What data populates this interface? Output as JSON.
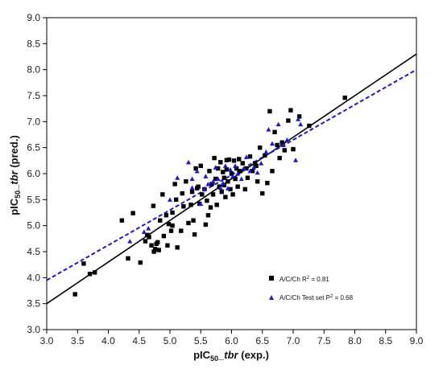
{
  "chart_data": {
    "type": "scatter",
    "xlabel": {
      "main": "pIC",
      "sub": "50",
      "sep": "_",
      "italic": "tbr",
      "rest": " (exp.)"
    },
    "ylabel": {
      "main": "pIC",
      "sub": "50",
      "sep": "_",
      "italic": "tbr",
      "rest": " (pred.)"
    },
    "xlim": [
      3.0,
      9.0
    ],
    "ylim": [
      3.0,
      9.0
    ],
    "xticks": [
      "3.0",
      "3.5",
      "4.0",
      "4.5",
      "5.0",
      "5.5",
      "6.0",
      "6.5",
      "7.0",
      "7.5",
      "8.0",
      "8.5",
      "9.0"
    ],
    "yticks": [
      "3.0",
      "3.5",
      "4.0",
      "4.5",
      "5.0",
      "5.5",
      "6.0",
      "6.5",
      "7.0",
      "7.5",
      "8.0",
      "8.5",
      "9.0"
    ],
    "grid": false,
    "legend_position": "bottom-right",
    "series": [
      {
        "name": "A/C/Ch R",
        "name_sup": "2",
        "name_tail": " = 0.81",
        "marker": "square",
        "color": "#000000",
        "points": [
          [
            3.46,
            3.68
          ],
          [
            3.6,
            4.27
          ],
          [
            3.7,
            4.07
          ],
          [
            3.78,
            4.1
          ],
          [
            4.22,
            5.1
          ],
          [
            4.32,
            4.37
          ],
          [
            4.4,
            5.24
          ],
          [
            4.52,
            4.29
          ],
          [
            4.6,
            4.7
          ],
          [
            4.63,
            4.82
          ],
          [
            4.66,
            4.78
          ],
          [
            4.7,
            4.62
          ],
          [
            4.73,
            5.38
          ],
          [
            4.74,
            4.5
          ],
          [
            4.76,
            4.55
          ],
          [
            4.78,
            4.65
          ],
          [
            4.8,
            4.68
          ],
          [
            4.82,
            4.53
          ],
          [
            4.88,
            5.6
          ],
          [
            4.9,
            4.8
          ],
          [
            4.94,
            5.2
          ],
          [
            4.96,
            4.62
          ],
          [
            4.98,
            5.03
          ],
          [
            5.02,
            4.9
          ],
          [
            5.04,
            5.25
          ],
          [
            5.08,
            5.8
          ],
          [
            5.1,
            5.5
          ],
          [
            5.12,
            4.58
          ],
          [
            5.18,
            4.9
          ],
          [
            5.22,
            5.37
          ],
          [
            5.26,
            5.85
          ],
          [
            5.3,
            5.05
          ],
          [
            5.34,
            5.4
          ],
          [
            5.36,
            5.65
          ],
          [
            5.38,
            5.1
          ],
          [
            5.4,
            4.83
          ],
          [
            5.42,
            6.1
          ],
          [
            5.44,
            5.72
          ],
          [
            5.48,
            5.42
          ],
          [
            5.52,
            5.6
          ],
          [
            5.56,
            5.7
          ],
          [
            5.58,
            5.02
          ],
          [
            5.6,
            5.48
          ],
          [
            5.62,
            5.2
          ],
          [
            5.64,
            6.05
          ],
          [
            5.66,
            5.35
          ],
          [
            5.68,
            5.8
          ],
          [
            5.7,
            5.6
          ],
          [
            5.72,
            6.3
          ],
          [
            5.74,
            5.9
          ],
          [
            5.76,
            5.4
          ],
          [
            5.78,
            6.1
          ],
          [
            5.8,
            5.75
          ],
          [
            5.82,
            6.22
          ],
          [
            5.84,
            5.65
          ],
          [
            5.86,
            6.03
          ],
          [
            5.88,
            5.78
          ],
          [
            5.9,
            5.55
          ],
          [
            5.92,
            6.08
          ],
          [
            5.94,
            5.85
          ],
          [
            5.96,
            6.27
          ],
          [
            5.98,
            5.7
          ],
          [
            6.0,
            6.0
          ],
          [
            6.02,
            5.6
          ],
          [
            6.04,
            6.25
          ],
          [
            6.06,
            5.9
          ],
          [
            6.08,
            6.1
          ],
          [
            6.1,
            5.75
          ],
          [
            6.14,
            6.05
          ],
          [
            6.18,
            6.2
          ],
          [
            6.22,
            5.7
          ],
          [
            6.26,
            5.92
          ],
          [
            6.3,
            6.33
          ],
          [
            6.34,
            6.05
          ],
          [
            6.38,
            6.2
          ],
          [
            6.42,
            5.85
          ],
          [
            6.46,
            6.5
          ],
          [
            6.5,
            5.62
          ],
          [
            6.54,
            6.35
          ],
          [
            6.58,
            5.82
          ],
          [
            6.62,
            7.2
          ],
          [
            6.66,
            6.05
          ],
          [
            6.7,
            6.8
          ],
          [
            6.74,
            6.55
          ],
          [
            6.78,
            6.3
          ],
          [
            6.82,
            6.6
          ],
          [
            6.86,
            6.45
          ],
          [
            6.92,
            7.02
          ],
          [
            6.96,
            7.22
          ],
          [
            7.0,
            6.47
          ],
          [
            7.1,
            7.1
          ],
          [
            7.26,
            6.92
          ],
          [
            7.84,
            7.46
          ],
          [
            6.4,
            6.15
          ],
          [
            5.5,
            6.15
          ],
          [
            5.2,
            5.62
          ],
          [
            5.46,
            5.75
          ],
          [
            6.12,
            6.28
          ],
          [
            6.24,
            6.1
          ],
          [
            5.88,
            5.92
          ],
          [
            5.92,
            6.26
          ],
          [
            5.04,
            5.0
          ],
          [
            4.84,
            5.1
          ]
        ]
      },
      {
        "name": "A/C/Ch Test set P",
        "name_sup": "2",
        "name_tail": " = 0.68",
        "marker": "triangle",
        "color": "#1a1acc",
        "points": [
          [
            4.35,
            4.7
          ],
          [
            4.58,
            4.88
          ],
          [
            4.65,
            4.95
          ],
          [
            5.0,
            5.5
          ],
          [
            5.12,
            5.92
          ],
          [
            5.3,
            6.22
          ],
          [
            5.36,
            5.73
          ],
          [
            5.44,
            6.05
          ],
          [
            5.5,
            5.42
          ],
          [
            5.56,
            5.7
          ],
          [
            5.62,
            5.8
          ],
          [
            5.7,
            5.85
          ],
          [
            5.74,
            6.12
          ],
          [
            5.78,
            5.9
          ],
          [
            5.82,
            5.73
          ],
          [
            5.86,
            5.82
          ],
          [
            5.9,
            6.15
          ],
          [
            5.94,
            5.72
          ],
          [
            5.98,
            6.08
          ],
          [
            6.02,
            5.95
          ],
          [
            6.06,
            6.15
          ],
          [
            6.1,
            6.0
          ],
          [
            6.16,
            5.9
          ],
          [
            6.2,
            6.1
          ],
          [
            6.24,
            6.32
          ],
          [
            6.3,
            6.05
          ],
          [
            6.36,
            6.12
          ],
          [
            6.42,
            6.02
          ],
          [
            6.48,
            6.2
          ],
          [
            6.56,
            6.42
          ],
          [
            6.6,
            6.85
          ],
          [
            6.66,
            6.58
          ],
          [
            6.76,
            6.95
          ],
          [
            6.84,
            6.55
          ],
          [
            6.9,
            6.65
          ],
          [
            7.04,
            6.26
          ],
          [
            7.08,
            7.05
          ],
          [
            7.12,
            6.95
          ],
          [
            5.36,
            5.9
          ],
          [
            5.58,
            5.95
          ]
        ]
      }
    ],
    "fit_lines": [
      {
        "series": "A/C/Ch R",
        "style": "solid",
        "color": "#000000",
        "x": [
          3.0,
          9.0
        ],
        "y": [
          3.5,
          8.3
        ]
      },
      {
        "series": "A/C/Ch Test set P",
        "style": "dashed",
        "color": "#1a1acc",
        "x": [
          3.0,
          9.0
        ],
        "y": [
          3.95,
          8.0
        ]
      }
    ]
  }
}
